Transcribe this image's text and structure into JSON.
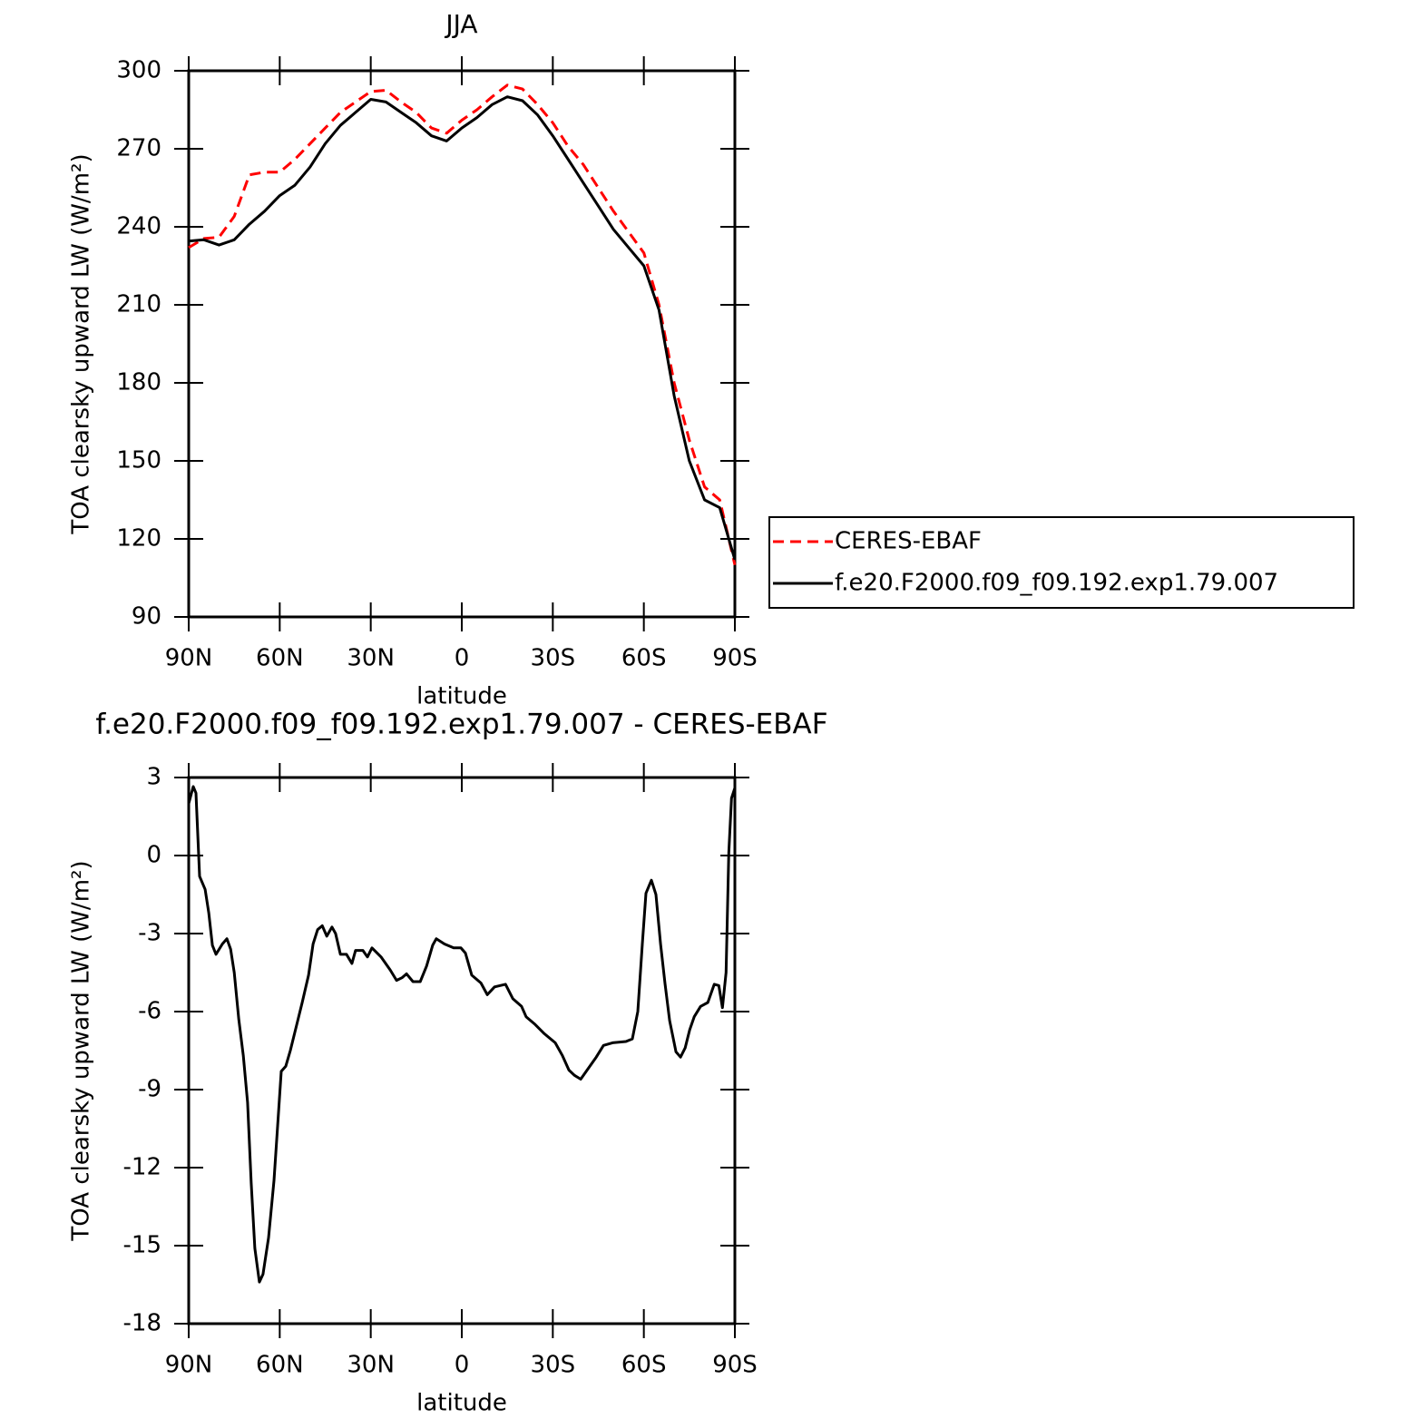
{
  "chart_data": [
    {
      "type": "line",
      "title": "JJA",
      "xlabel": "latitude",
      "ylabel": "TOA clearsky upward LW (W/m²)",
      "x": [
        90,
        85,
        80,
        75,
        70,
        65,
        60,
        55,
        50,
        45,
        40,
        35,
        30,
        25,
        20,
        15,
        10,
        5,
        0,
        -5,
        -10,
        -15,
        -20,
        -25,
        -30,
        -35,
        -40,
        -45,
        -50,
        -55,
        -60,
        -65,
        -70,
        -75,
        -80,
        -85,
        -90
      ],
      "series": [
        {
          "name": "CERES-EBAF",
          "color": "#ff0000",
          "dash": true,
          "values": [
            232,
            235.5,
            236,
            244,
            260,
            261,
            261,
            266,
            272,
            278,
            284,
            288,
            292,
            292.5,
            288,
            284,
            278,
            276,
            281,
            285,
            290,
            294.5,
            293,
            287,
            280,
            271,
            264,
            255,
            246,
            238,
            230,
            210,
            180,
            158,
            140,
            135,
            110
          ]
        },
        {
          "name": "f.e20.F2000.f09_f09.192.exp1.79.007",
          "color": "#000000",
          "dash": false,
          "values": [
            234.5,
            235,
            233,
            235,
            241,
            246,
            252,
            256,
            263,
            272,
            279,
            284,
            289,
            288,
            284,
            280,
            275,
            273,
            278,
            282,
            287,
            290,
            288.5,
            283,
            275,
            266,
            257,
            248,
            239,
            232,
            225,
            208,
            175,
            150,
            135,
            132,
            112
          ]
        }
      ],
      "xlim": [
        90,
        -90
      ],
      "xticks": [
        {
          "value": 90,
          "label": "90N"
        },
        {
          "value": 60,
          "label": "60N"
        },
        {
          "value": 30,
          "label": "30N"
        },
        0,
        {
          "value": -30,
          "label": "30S"
        },
        {
          "value": -60,
          "label": "60S"
        },
        {
          "value": -90,
          "label": "90S"
        }
      ],
      "ylim": [
        90,
        300
      ],
      "yticks": [
        90,
        120,
        150,
        180,
        210,
        240,
        270,
        300
      ],
      "legend": "right"
    },
    {
      "type": "line",
      "title": "f.e20.F2000.f09_f09.192.exp1.79.007 - CERES-EBAF",
      "xlabel": "latitude",
      "ylabel": "TOA clearsky upward LW (W/m²)",
      "x": [
        90,
        88.5,
        87.6,
        86.4,
        84.6,
        83.4,
        82.2,
        81,
        78.9,
        77.4,
        76.2,
        75,
        73.5,
        72,
        70.6,
        69.4,
        68.2,
        66.7,
        65.5,
        63.7,
        61.9,
        60.7,
        59.5,
        58,
        56.5,
        54.4,
        52.6,
        50.5,
        49,
        47.5,
        46,
        44.5,
        42.8,
        41.6,
        40,
        38,
        36.2,
        35,
        32.6,
        31.1,
        29.6,
        26.6,
        23.6,
        21.5,
        19.7,
        18.2,
        16.1,
        13.7,
        11.6,
        9.6,
        8.4,
        5.7,
        2.7,
        0.3,
        -1.2,
        -3.3,
        -6.3,
        -8.4,
        -10.8,
        -14.4,
        -16.8,
        -19.7,
        -21.2,
        -24.2,
        -27.2,
        -30.8,
        -33.2,
        -35.3,
        -37.1,
        -39.2,
        -41.6,
        -44.3,
        -46.7,
        -49.7,
        -54.1,
        -56.2,
        -58,
        -59.5,
        -60.7,
        -62.5,
        -64,
        -65.5,
        -67,
        -68.5,
        -70.6,
        -72.1,
        -73.6,
        -75.1,
        -76.6,
        -78.7,
        -81.1,
        -83.2,
        -84.7,
        -85.9,
        -87.1,
        -88,
        -88.9,
        -90
      ],
      "values": [
        2.0,
        2.65,
        2.4,
        -0.8,
        -1.3,
        -2.2,
        -3.45,
        -3.8,
        -3.4,
        -3.2,
        -3.6,
        -4.5,
        -6.3,
        -7.7,
        -9.5,
        -12.6,
        -15.1,
        -16.4,
        -16.1,
        -14.7,
        -12.5,
        -10.4,
        -8.3,
        -8.1,
        -7.5,
        -6.5,
        -5.65,
        -4.6,
        -3.4,
        -2.85,
        -2.7,
        -3.1,
        -2.75,
        -3.0,
        -3.8,
        -3.8,
        -4.15,
        -3.65,
        -3.65,
        -3.9,
        -3.55,
        -3.9,
        -4.4,
        -4.8,
        -4.7,
        -4.55,
        -4.85,
        -4.85,
        -4.25,
        -3.45,
        -3.2,
        -3.4,
        -3.55,
        -3.55,
        -3.75,
        -4.6,
        -4.9,
        -5.35,
        -5.05,
        -4.95,
        -5.5,
        -5.8,
        -6.2,
        -6.5,
        -6.85,
        -7.2,
        -7.7,
        -8.25,
        -8.45,
        -8.6,
        -8.2,
        -7.75,
        -7.3,
        -7.2,
        -7.15,
        -7.05,
        -6.0,
        -3.4,
        -1.45,
        -0.95,
        -1.5,
        -3.4,
        -4.95,
        -6.35,
        -7.55,
        -7.75,
        -7.4,
        -6.7,
        -6.2,
        -5.8,
        -5.65,
        -4.95,
        -5.0,
        -5.85,
        -4.5,
        0.1,
        2.2,
        2.6
      ],
      "color": "#000000",
      "xlim": [
        90,
        -90
      ],
      "xticks": [
        {
          "value": 90,
          "label": "90N"
        },
        {
          "value": 60,
          "label": "60N"
        },
        {
          "value": 30,
          "label": "30N"
        },
        0,
        {
          "value": -30,
          "label": "30S"
        },
        {
          "value": -60,
          "label": "60S"
        },
        {
          "value": -90,
          "label": "90S"
        }
      ],
      "ylim": [
        -18,
        3
      ],
      "yticks": [
        -18,
        -15,
        -12,
        -9,
        -6,
        -3,
        0,
        3
      ]
    }
  ]
}
